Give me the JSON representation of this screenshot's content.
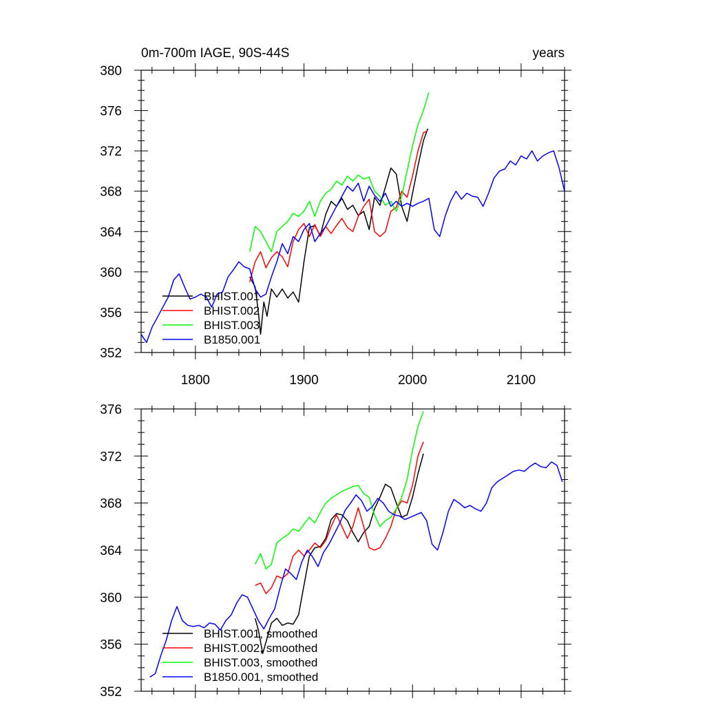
{
  "chart_data": [
    {
      "type": "line",
      "title": "0m-700m IAGE, 90S-44S",
      "subtitle": "years",
      "xlim": [
        1750,
        2140
      ],
      "ylim": [
        352,
        380
      ],
      "xticks": [
        1800,
        1900,
        2000,
        2100
      ],
      "yticks": [
        352,
        356,
        360,
        364,
        368,
        372,
        376,
        380
      ],
      "x_tick_labels": [
        "1800",
        "1900",
        "2000",
        "2100"
      ],
      "y_tick_labels": [
        "352",
        "356",
        "360",
        "364",
        "368",
        "372",
        "376",
        "380"
      ],
      "legend_position": "bottom-left",
      "series": [
        {
          "name": "BHIST.001",
          "color": "#000000",
          "x": [
            1850,
            1855,
            1858,
            1860,
            1863,
            1866,
            1870,
            1875,
            1880,
            1885,
            1890,
            1895,
            1900,
            1905,
            1910,
            1915,
            1920,
            1925,
            1930,
            1935,
            1940,
            1945,
            1950,
            1955,
            1960,
            1965,
            1970,
            1975,
            1980,
            1985,
            1990,
            1995,
            2000,
            2005,
            2010,
            2014
          ],
          "y": [
            359.5,
            358.5,
            356.0,
            353.8,
            357.0,
            355.6,
            358.3,
            357.5,
            358.3,
            357.4,
            358.0,
            357.0,
            361.0,
            364.4,
            364.6,
            363.6,
            365.7,
            367.0,
            366.5,
            367.3,
            366.2,
            366.6,
            365.6,
            366.0,
            364.2,
            367.4,
            366.6,
            368.4,
            370.3,
            369.7,
            366.5,
            365.0,
            367.8,
            370.5,
            373.0,
            374.2
          ]
        },
        {
          "name": "BHIST.002",
          "color": "#ff0000",
          "x": [
            1850,
            1855,
            1860,
            1865,
            1870,
            1875,
            1880,
            1885,
            1890,
            1895,
            1900,
            1905,
            1910,
            1915,
            1920,
            1925,
            1930,
            1935,
            1940,
            1945,
            1950,
            1955,
            1960,
            1965,
            1970,
            1975,
            1980,
            1985,
            1990,
            1995,
            2000,
            2005,
            2010,
            2014
          ],
          "y": [
            359.0,
            361.0,
            362.0,
            360.4,
            361.4,
            362.0,
            361.5,
            360.5,
            363.0,
            364.2,
            364.8,
            363.5,
            364.7,
            363.5,
            364.5,
            363.8,
            364.6,
            365.3,
            364.4,
            364.0,
            365.5,
            366.5,
            367.2,
            364.0,
            363.5,
            364.0,
            366.0,
            366.4,
            368.0,
            367.4,
            369.5,
            372.0,
            373.8,
            374.0
          ]
        },
        {
          "name": "BHIST.003",
          "color": "#00ff00",
          "x": [
            1850,
            1855,
            1860,
            1865,
            1870,
            1875,
            1880,
            1885,
            1890,
            1895,
            1900,
            1905,
            1910,
            1915,
            1920,
            1925,
            1930,
            1935,
            1940,
            1945,
            1950,
            1955,
            1960,
            1965,
            1970,
            1975,
            1980,
            1985,
            1990,
            1995,
            2000,
            2005,
            2010,
            2015
          ],
          "y": [
            362.0,
            364.5,
            364.0,
            363.0,
            362.0,
            364.0,
            364.5,
            365.0,
            365.8,
            365.5,
            366.0,
            367.0,
            365.5,
            367.0,
            367.8,
            368.2,
            369.0,
            368.6,
            369.5,
            369.0,
            369.6,
            369.2,
            369.4,
            368.0,
            367.5,
            366.6,
            367.0,
            366.0,
            367.5,
            370.0,
            372.5,
            374.6,
            376.0,
            377.8
          ]
        },
        {
          "name": "B1850.001",
          "color": "#0000ff",
          "x": [
            1750,
            1755,
            1760,
            1765,
            1770,
            1775,
            1780,
            1785,
            1790,
            1795,
            1800,
            1805,
            1810,
            1815,
            1820,
            1825,
            1830,
            1835,
            1840,
            1845,
            1850,
            1855,
            1860,
            1865,
            1870,
            1875,
            1880,
            1885,
            1890,
            1895,
            1900,
            1905,
            1910,
            1915,
            1920,
            1925,
            1930,
            1935,
            1940,
            1945,
            1950,
            1955,
            1960,
            1965,
            1970,
            1975,
            1980,
            1985,
            1990,
            1995,
            2000,
            2005,
            2010,
            2015,
            2020,
            2025,
            2030,
            2035,
            2040,
            2045,
            2050,
            2055,
            2060,
            2065,
            2070,
            2075,
            2080,
            2085,
            2090,
            2095,
            2100,
            2105,
            2110,
            2115,
            2120,
            2125,
            2130,
            2135,
            2140
          ],
          "y": [
            353.8,
            353.0,
            354.5,
            355.5,
            356.5,
            357.5,
            359.2,
            359.8,
            358.5,
            357.3,
            357.5,
            357.8,
            357.5,
            356.5,
            357.8,
            358.0,
            359.5,
            360.2,
            361.0,
            360.5,
            360.3,
            358.3,
            357.5,
            357.8,
            359.5,
            361.0,
            362.8,
            361.8,
            363.5,
            363.0,
            364.2,
            364.8,
            363.0,
            363.8,
            364.5,
            365.5,
            366.5,
            367.5,
            368.5,
            368.0,
            368.8,
            367.0,
            368.5,
            367.6,
            367.0,
            367.8,
            366.5,
            367.0,
            366.5,
            366.8,
            366.5,
            366.8,
            367.0,
            367.3,
            364.2,
            363.5,
            365.5,
            367.0,
            368.0,
            367.2,
            367.8,
            367.5,
            367.4,
            366.5,
            367.8,
            369.3,
            370.0,
            370.2,
            371.0,
            370.6,
            371.5,
            371.2,
            372.0,
            371.0,
            371.5,
            371.8,
            372.0,
            370.3,
            368.0
          ]
        }
      ]
    },
    {
      "type": "line",
      "title": "",
      "xlim": [
        1750,
        2140
      ],
      "ylim": [
        352,
        376
      ],
      "xticks": [
        1800,
        1900,
        2000,
        2100
      ],
      "yticks": [
        352,
        356,
        360,
        364,
        368,
        372,
        376
      ],
      "x_tick_labels": [],
      "y_tick_labels": [
        "352",
        "356",
        "360",
        "364",
        "368",
        "372",
        "376"
      ],
      "legend_position": "bottom-left",
      "series": [
        {
          "name": "BHIST.001, smoothed",
          "color": "#000000",
          "x": [
            1855,
            1858,
            1862,
            1866,
            1870,
            1875,
            1880,
            1885,
            1890,
            1895,
            1900,
            1905,
            1910,
            1915,
            1920,
            1925,
            1930,
            1935,
            1940,
            1945,
            1950,
            1955,
            1960,
            1965,
            1970,
            1975,
            1980,
            1985,
            1990,
            1995,
            2000,
            2005,
            2010
          ],
          "y": [
            358.2,
            357.2,
            355.2,
            356.5,
            357.8,
            358.2,
            357.6,
            357.8,
            357.7,
            358.5,
            361.0,
            363.5,
            364.2,
            364.3,
            365.0,
            366.6,
            367.1,
            367.0,
            366.5,
            365.5,
            364.7,
            365.5,
            366.0,
            367.5,
            368.5,
            369.6,
            369.3,
            368.0,
            366.8,
            367.0,
            368.5,
            370.5,
            372.2
          ]
        },
        {
          "name": "BHIST.002, smoothed",
          "color": "#ff0000",
          "x": [
            1855,
            1860,
            1865,
            1870,
            1875,
            1880,
            1885,
            1890,
            1895,
            1900,
            1905,
            1910,
            1915,
            1920,
            1925,
            1930,
            1935,
            1940,
            1945,
            1950,
            1955,
            1960,
            1965,
            1970,
            1975,
            1980,
            1985,
            1990,
            1995,
            2000,
            2005,
            2010
          ],
          "y": [
            361.0,
            361.2,
            360.3,
            360.8,
            361.8,
            361.6,
            362.0,
            363.5,
            364.0,
            363.5,
            364.0,
            364.6,
            364.2,
            364.8,
            366.0,
            367.0,
            366.0,
            365.0,
            366.0,
            367.6,
            366.0,
            364.2,
            364.0,
            364.2,
            365.0,
            366.0,
            367.5,
            368.2,
            368.0,
            369.5,
            372.0,
            373.2
          ]
        },
        {
          "name": "BHIST.003, smoothed",
          "color": "#00ff00",
          "x": [
            1855,
            1860,
            1865,
            1870,
            1875,
            1880,
            1885,
            1890,
            1895,
            1900,
            1905,
            1910,
            1915,
            1920,
            1925,
            1930,
            1935,
            1940,
            1945,
            1950,
            1955,
            1960,
            1965,
            1970,
            1975,
            1980,
            1985,
            1990,
            1995,
            2000,
            2005,
            2010
          ],
          "y": [
            362.8,
            363.7,
            362.4,
            362.8,
            364.6,
            365.0,
            365.3,
            365.8,
            365.6,
            366.2,
            366.8,
            366.3,
            367.2,
            368.0,
            368.4,
            368.7,
            369.0,
            369.2,
            369.4,
            369.5,
            368.8,
            368.5,
            367.0,
            366.0,
            366.5,
            366.8,
            367.5,
            368.5,
            370.0,
            372.5,
            374.5,
            375.8
          ]
        },
        {
          "name": "B1850.001, smoothed",
          "color": "#0000ff",
          "x": [
            1758,
            1763,
            1768,
            1773,
            1778,
            1783,
            1788,
            1793,
            1798,
            1803,
            1808,
            1813,
            1818,
            1823,
            1828,
            1833,
            1838,
            1843,
            1848,
            1853,
            1858,
            1863,
            1868,
            1873,
            1878,
            1883,
            1888,
            1893,
            1898,
            1903,
            1908,
            1913,
            1918,
            1923,
            1928,
            1933,
            1938,
            1943,
            1948,
            1953,
            1958,
            1963,
            1968,
            1973,
            1978,
            1983,
            1988,
            1993,
            1998,
            2003,
            2008,
            2013,
            2018,
            2023,
            2028,
            2033,
            2038,
            2043,
            2048,
            2053,
            2058,
            2063,
            2068,
            2073,
            2078,
            2083,
            2088,
            2093,
            2098,
            2103,
            2108,
            2113,
            2118,
            2123,
            2128,
            2133,
            2138
          ],
          "y": [
            353.2,
            353.5,
            355.0,
            356.3,
            358.0,
            359.2,
            358.0,
            357.6,
            357.5,
            357.6,
            357.4,
            357.8,
            357.7,
            357.2,
            358.0,
            358.5,
            359.5,
            360.2,
            360.0,
            359.0,
            358.0,
            357.3,
            358.2,
            359.0,
            360.8,
            362.4,
            362.0,
            361.5,
            363.0,
            364.0,
            363.4,
            362.6,
            363.8,
            364.5,
            365.4,
            366.3,
            367.4,
            368.0,
            368.7,
            368.2,
            367.3,
            367.7,
            368.4,
            368.0,
            367.3,
            367.0,
            366.9,
            366.6,
            366.8,
            367.0,
            367.2,
            366.5,
            364.5,
            364.0,
            365.5,
            367.3,
            368.3,
            368.0,
            367.6,
            367.8,
            367.5,
            367.3,
            368.0,
            369.3,
            369.8,
            370.1,
            370.4,
            370.7,
            370.8,
            370.7,
            371.1,
            371.4,
            371.1,
            371.0,
            371.5,
            371.2,
            369.8
          ]
        }
      ]
    }
  ]
}
